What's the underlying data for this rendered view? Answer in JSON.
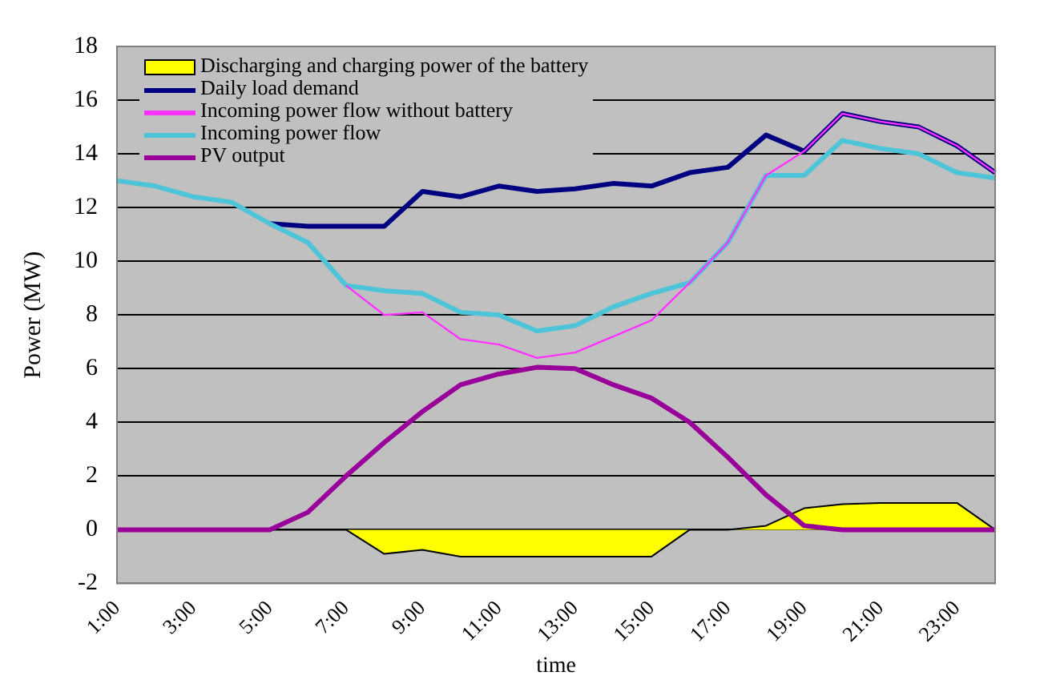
{
  "chart_data": {
    "type": "line",
    "xlabel": "time",
    "ylabel": "Power (MW)",
    "categories": [
      "1:00",
      null,
      "3:00",
      null,
      "5:00",
      null,
      "7:00",
      null,
      "9:00",
      null,
      "11:00",
      null,
      "13:00",
      null,
      "15:00",
      null,
      "17:00",
      null,
      "19:00",
      null,
      "21:00",
      null,
      "23:00",
      null
    ],
    "series": [
      {
        "name": "Discharging and charging power of the battery",
        "type": "area",
        "color": "#ffff00",
        "values": [
          0,
          0,
          0,
          0,
          0,
          0,
          0,
          -0.9,
          -0.75,
          -1.0,
          -1.0,
          -1.0,
          -1.0,
          -1.0,
          -1.0,
          0,
          0,
          0.15,
          0.8,
          0.95,
          1.0,
          1.0,
          1.0,
          0
        ]
      },
      {
        "name": "Daily load demand",
        "color": "#000080",
        "values": [
          null,
          null,
          null,
          null,
          11.4,
          11.3,
          11.3,
          11.3,
          12.6,
          12.4,
          12.8,
          12.6,
          12.7,
          12.9,
          12.8,
          13.3,
          13.5,
          14.7,
          14.1,
          15.5,
          15.2,
          15.0,
          14.3,
          13.3
        ]
      },
      {
        "name": "Incoming power flow without battery",
        "color": "#ff33ff",
        "values": [
          null,
          null,
          null,
          null,
          null,
          null,
          9.1,
          8.0,
          8.1,
          7.1,
          6.9,
          6.4,
          6.6,
          7.2,
          7.8,
          9.2,
          10.7,
          13.2,
          14.1,
          15.5,
          15.2,
          15.0,
          14.3,
          13.3
        ]
      },
      {
        "name": "Incoming power flow",
        "color": "#4ec4d8",
        "values": [
          13.0,
          12.8,
          12.4,
          12.2,
          11.4,
          10.7,
          9.1,
          8.9,
          8.8,
          8.1,
          8.0,
          7.4,
          7.6,
          8.3,
          8.8,
          9.2,
          10.7,
          13.2,
          13.2,
          14.5,
          14.2,
          14.0,
          13.3,
          13.1
        ]
      },
      {
        "name": "PV output",
        "color": "#990099",
        "values": [
          0,
          0,
          0,
          0,
          0,
          0.65,
          2.0,
          3.25,
          4.4,
          5.4,
          5.8,
          6.05,
          6.0,
          5.4,
          4.9,
          4.0,
          2.7,
          1.3,
          0.15,
          0,
          0,
          0,
          0,
          0
        ]
      }
    ],
    "ylim": [
      -2,
      18
    ],
    "yticks": [
      -2,
      0,
      2,
      4,
      6,
      8,
      10,
      12,
      14,
      16,
      18
    ],
    "grid": "y",
    "legend": "top left"
  }
}
